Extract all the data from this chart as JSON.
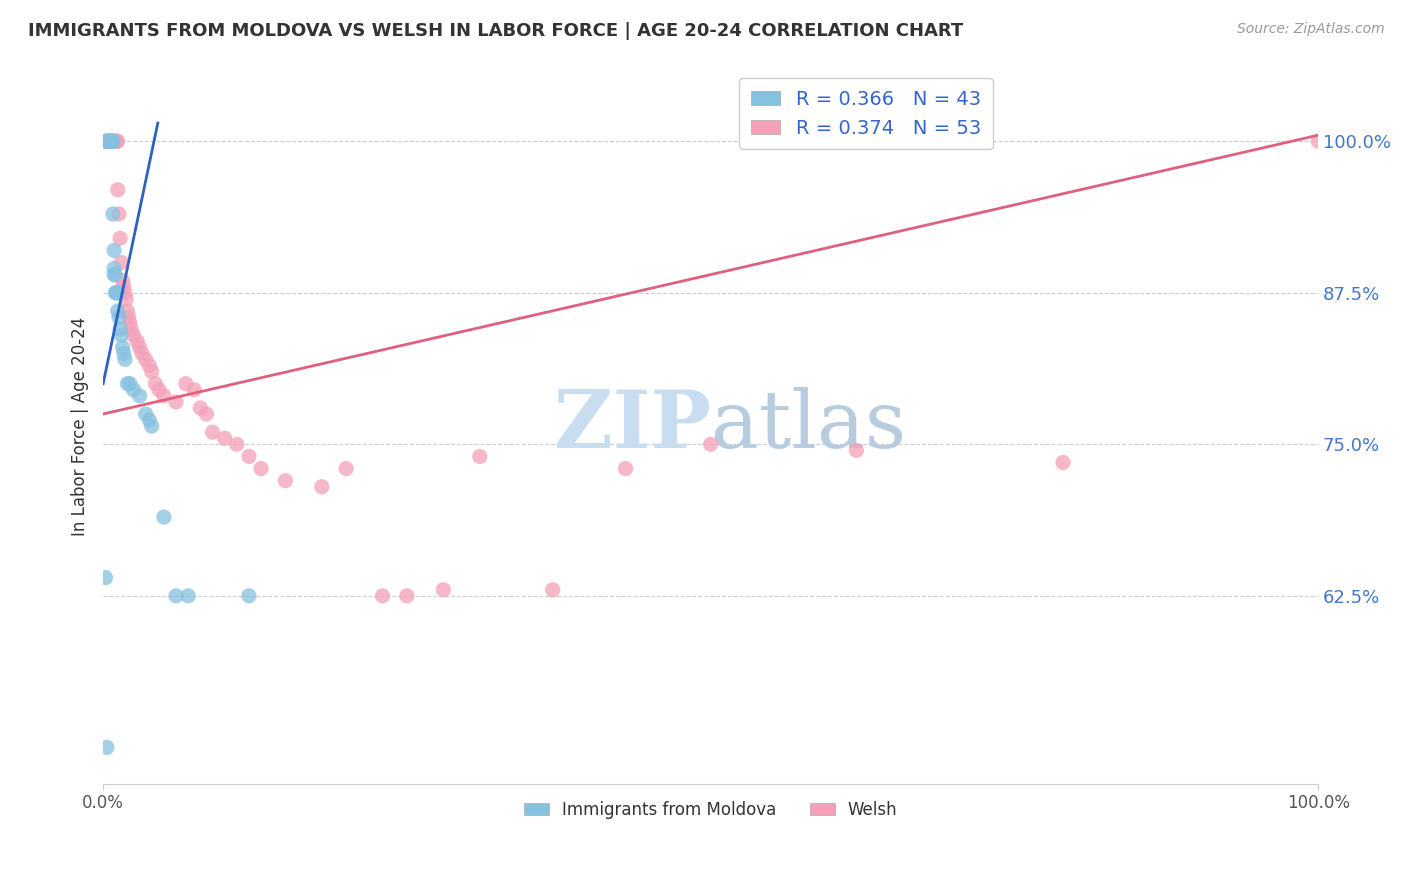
{
  "title": "IMMIGRANTS FROM MOLDOVA VS WELSH IN LABOR FORCE | AGE 20-24 CORRELATION CHART",
  "source": "Source: ZipAtlas.com",
  "ylabel": "In Labor Force | Age 20-24",
  "ytick_labels": [
    "100.0%",
    "87.5%",
    "75.0%",
    "62.5%"
  ],
  "ytick_values": [
    1.0,
    0.875,
    0.75,
    0.625
  ],
  "xlim": [
    0.0,
    1.0
  ],
  "ylim": [
    0.47,
    1.06
  ],
  "legend_r_blue": "R = 0.366",
  "legend_n_blue": "N = 43",
  "legend_r_pink": "R = 0.374",
  "legend_n_pink": "N = 53",
  "blue_color": "#85c1e0",
  "pink_color": "#f4a0b8",
  "blue_line_color": "#3060c0",
  "pink_line_color": "#e06080",
  "watermark_zip": "ZIP",
  "watermark_atlas": "atlas",
  "watermark_color_zip": "#c8dff0",
  "watermark_color_atlas": "#b0c8e0",
  "blue_x": [
    0.002,
    0.003,
    0.003,
    0.004,
    0.004,
    0.005,
    0.005,
    0.006,
    0.006,
    0.007,
    0.007,
    0.007,
    0.008,
    0.008,
    0.008,
    0.009,
    0.009,
    0.009,
    0.01,
    0.01,
    0.011,
    0.011,
    0.012,
    0.012,
    0.013,
    0.014,
    0.015,
    0.016,
    0.017,
    0.018,
    0.02,
    0.022,
    0.025,
    0.03,
    0.035,
    0.038,
    0.04,
    0.05,
    0.06,
    0.07,
    0.002,
    0.12,
    0.003
  ],
  "blue_y": [
    1.0,
    1.0,
    1.0,
    1.0,
    1.0,
    1.0,
    1.0,
    1.0,
    1.0,
    1.0,
    1.0,
    1.0,
    1.0,
    1.0,
    0.94,
    0.91,
    0.895,
    0.89,
    0.89,
    0.875,
    0.875,
    0.875,
    0.875,
    0.86,
    0.855,
    0.845,
    0.84,
    0.83,
    0.825,
    0.82,
    0.8,
    0.8,
    0.795,
    0.79,
    0.775,
    0.77,
    0.765,
    0.69,
    0.625,
    0.625,
    0.64,
    0.625,
    0.5
  ],
  "pink_x": [
    0.003,
    0.005,
    0.008,
    0.009,
    0.01,
    0.01,
    0.011,
    0.012,
    0.012,
    0.013,
    0.014,
    0.015,
    0.016,
    0.017,
    0.018,
    0.019,
    0.02,
    0.021,
    0.022,
    0.023,
    0.025,
    0.028,
    0.03,
    0.032,
    0.035,
    0.038,
    0.04,
    0.043,
    0.046,
    0.05,
    0.06,
    0.068,
    0.075,
    0.08,
    0.085,
    0.09,
    0.1,
    0.11,
    0.12,
    0.13,
    0.15,
    0.18,
    0.2,
    0.23,
    0.25,
    0.28,
    0.31,
    0.37,
    0.43,
    0.5,
    0.62,
    0.79,
    1.0
  ],
  "pink_y": [
    1.0,
    1.0,
    1.0,
    1.0,
    1.0,
    1.0,
    1.0,
    1.0,
    0.96,
    0.94,
    0.92,
    0.9,
    0.885,
    0.88,
    0.875,
    0.87,
    0.86,
    0.855,
    0.85,
    0.845,
    0.84,
    0.835,
    0.83,
    0.825,
    0.82,
    0.815,
    0.81,
    0.8,
    0.795,
    0.79,
    0.785,
    0.8,
    0.795,
    0.78,
    0.775,
    0.76,
    0.755,
    0.75,
    0.74,
    0.73,
    0.72,
    0.715,
    0.73,
    0.625,
    0.625,
    0.63,
    0.74,
    0.63,
    0.73,
    0.75,
    0.745,
    0.735,
    1.0
  ],
  "blue_line_x0": 0.0,
  "blue_line_x1": 0.045,
  "blue_line_y0": 0.8,
  "blue_line_y1": 1.015,
  "pink_line_x0": 0.0,
  "pink_line_x1": 1.0,
  "pink_line_y0": 0.775,
  "pink_line_y1": 1.005
}
